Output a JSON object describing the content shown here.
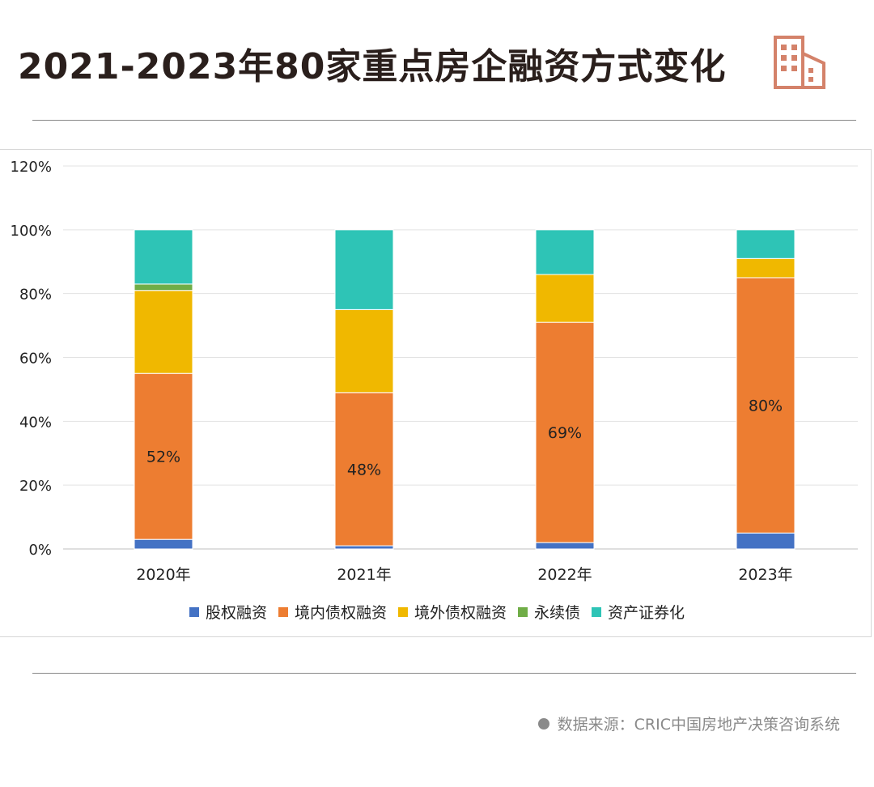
{
  "header": {
    "title": "2021-2023年80家重点房企融资方式变化"
  },
  "footer": {
    "source": "数据来源：CRIC中国房地产决策咨询系统"
  },
  "colors": {
    "equity": "#4472c4",
    "domestic_debt": "#ed7d31",
    "overseas_debt": "#f0b800",
    "perpetual_bond": "#70ad47",
    "abs": "#2ec4b6",
    "logo": "#d4826a"
  },
  "chart_data": {
    "type": "bar",
    "stacked": true,
    "title": "2021-2023年80家重点房企融资方式变化",
    "categories": [
      "2020年",
      "2021年",
      "2022年",
      "2023年"
    ],
    "series": [
      {
        "name": "股权融资",
        "color": "#4472c4",
        "values": [
          3,
          1,
          2,
          5
        ]
      },
      {
        "name": "境内债权融资",
        "color": "#ed7d31",
        "values": [
          52,
          48,
          69,
          80
        ]
      },
      {
        "name": "境外债权融资",
        "color": "#f0b800",
        "values": [
          26,
          26,
          15,
          6
        ]
      },
      {
        "name": "永续债",
        "color": "#70ad47",
        "values": [
          2,
          0,
          0,
          0
        ]
      },
      {
        "name": "资产证券化",
        "color": "#2ec4b6",
        "values": [
          17,
          25,
          14,
          9
        ]
      }
    ],
    "data_labels": [
      {
        "category": "2020年",
        "series": "境内债权融资",
        "text": "52%"
      },
      {
        "category": "2021年",
        "series": "境内债权融资",
        "text": "48%"
      },
      {
        "category": "2022年",
        "series": "境内债权融资",
        "text": "69%"
      },
      {
        "category": "2023年",
        "series": "境内债权融资",
        "text": "80%"
      }
    ],
    "y_ticks": [
      "0%",
      "20%",
      "40%",
      "60%",
      "80%",
      "100%",
      "120%"
    ],
    "ylim": [
      0,
      120
    ],
    "xlabel": "",
    "ylabel": "",
    "grid": true,
    "legend_position": "bottom"
  }
}
